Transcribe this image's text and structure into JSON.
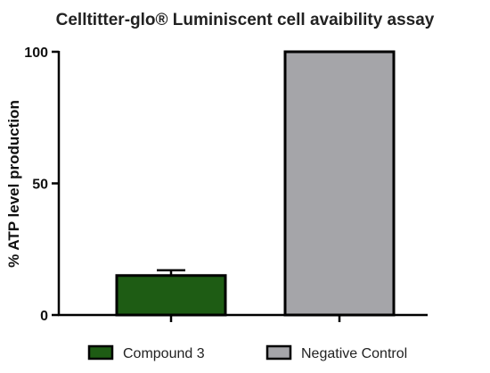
{
  "chart_data": {
    "type": "bar",
    "title": "Celltitter-glo® Luminiscent cell avaibility assay",
    "xlabel": "",
    "ylabel": "% ATP level production",
    "ylim": [
      0,
      100
    ],
    "yticks": [
      0,
      50,
      100
    ],
    "grid": false,
    "legend_position": "bottom",
    "categories": [
      "Compound 3",
      "Negative Control"
    ],
    "values": [
      15,
      100
    ],
    "error": [
      2,
      0
    ],
    "colors": [
      "#1e5c14",
      "#a5a5a9"
    ],
    "edge_color": "#000000"
  }
}
